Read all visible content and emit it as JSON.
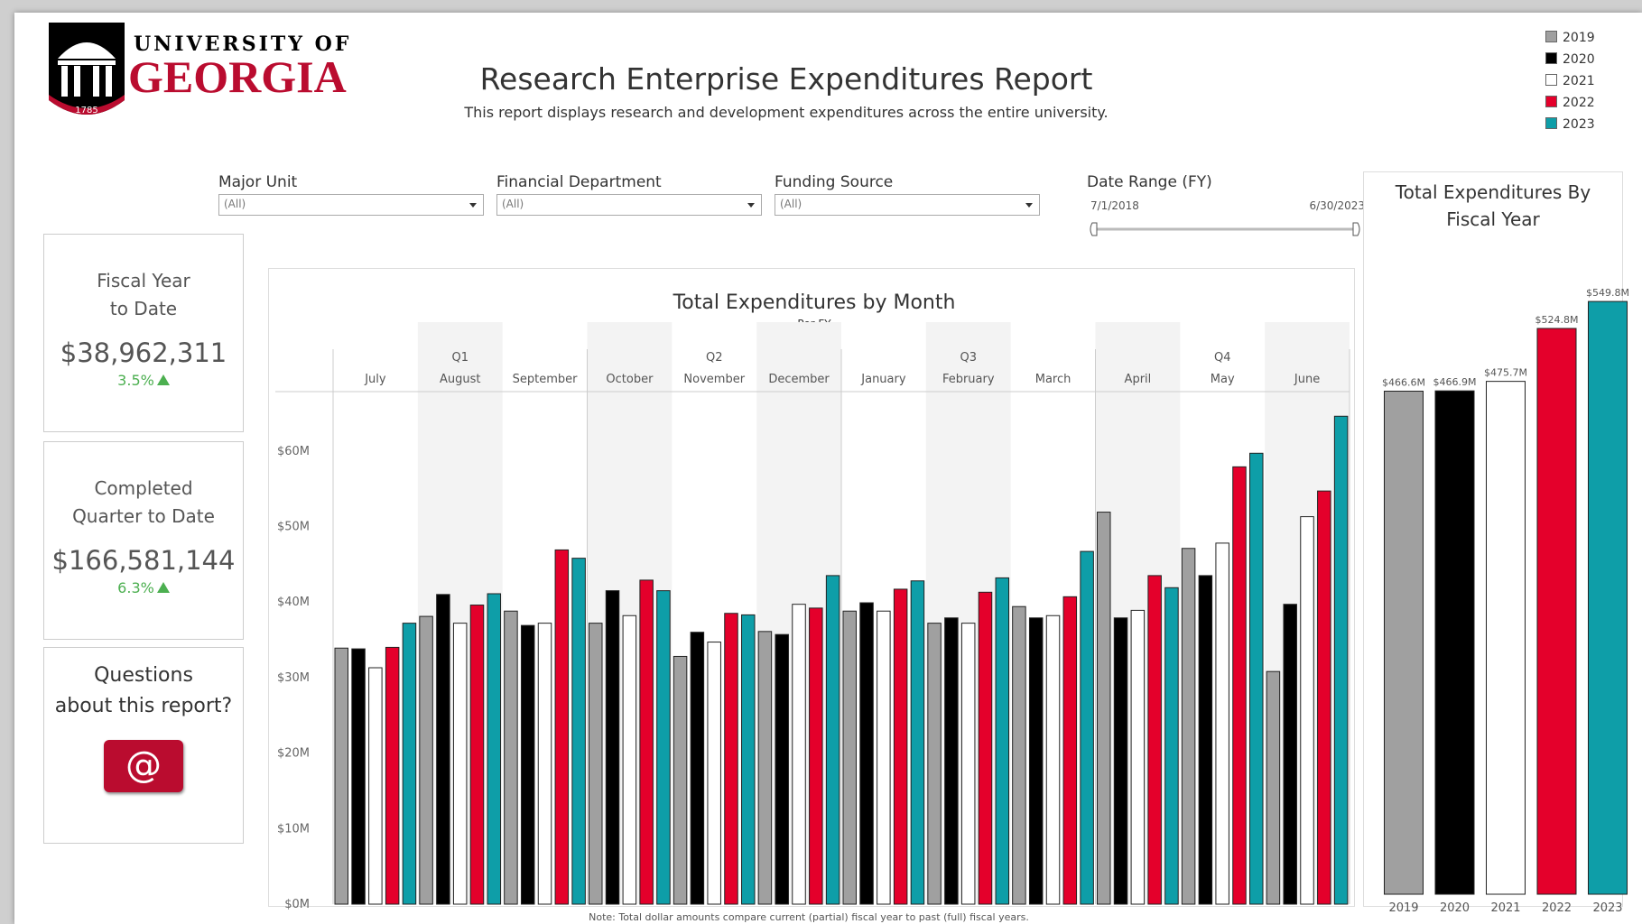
{
  "header": {
    "university_line1": "UNIVERSITY OF",
    "university_line2": "GEORGIA",
    "seal_year": "1785",
    "title": "Research Enterprise Expenditures Report",
    "subtitle": "This report displays research and development expenditures across the entire university."
  },
  "filters": [
    {
      "label": "Major Unit",
      "value": "(All)"
    },
    {
      "label": "Financial Department",
      "value": "(All)"
    },
    {
      "label": "Funding Source",
      "value": "(All)"
    }
  ],
  "date_range": {
    "label": "Date Range (FY)",
    "start": "7/1/2018",
    "end": "6/30/2023"
  },
  "kpis": [
    {
      "title_lines": [
        "Fiscal Year",
        "to Date"
      ],
      "value": "$38,962,311",
      "change": "3.5%"
    },
    {
      "title_lines": [
        "Completed",
        "Quarter to Date"
      ],
      "value": "$166,581,144",
      "change": "6.3%"
    }
  ],
  "contact": {
    "lines": [
      "Questions",
      "about this report?"
    ],
    "icon_text": "@"
  },
  "note": "Note: Total dollar amounts compare current (partial) fiscal year to past (full) fiscal years.",
  "chart_data": [
    {
      "type": "bar",
      "title": "Total Expenditures by Month",
      "subtitle": "Per FY",
      "quarters": [
        "Q1",
        "Q2",
        "Q3",
        "Q4"
      ],
      "categories": [
        "July",
        "August",
        "September",
        "October",
        "November",
        "December",
        "January",
        "February",
        "March",
        "April",
        "May",
        "June"
      ],
      "series": [
        {
          "name": "2019",
          "color": "#a0a0a0",
          "values": [
            33.9,
            38.1,
            38.8,
            37.2,
            32.8,
            36.1,
            38.8,
            37.2,
            39.4,
            51.9,
            47.1,
            30.8
          ]
        },
        {
          "name": "2020",
          "color": "#000000",
          "values": [
            33.8,
            41.0,
            36.9,
            41.5,
            36.0,
            35.7,
            39.9,
            37.9,
            37.9,
            37.9,
            43.5,
            39.7
          ]
        },
        {
          "name": "2021",
          "color": "#ffffff",
          "values": [
            31.3,
            37.2,
            37.2,
            38.2,
            34.7,
            39.7,
            38.8,
            37.2,
            38.2,
            38.9,
            47.8,
            51.3
          ]
        },
        {
          "name": "2022",
          "color": "#e4002b",
          "values": [
            34.0,
            39.6,
            46.9,
            42.9,
            38.5,
            39.2,
            41.7,
            41.3,
            40.7,
            43.5,
            57.9,
            54.7
          ]
        },
        {
          "name": "2023",
          "color": "#0e9ea8",
          "values": [
            37.2,
            41.1,
            45.8,
            41.5,
            38.3,
            43.5,
            42.8,
            43.2,
            46.7,
            41.9,
            59.7,
            64.6
          ]
        }
      ],
      "ylim": [
        0,
        67.5
      ],
      "yticks": [
        {
          "value": 0,
          "label": "$0M"
        },
        {
          "value": 10,
          "label": "$10M"
        },
        {
          "value": 20,
          "label": "$20M"
        },
        {
          "value": 30,
          "label": "$30M"
        },
        {
          "value": 40,
          "label": "$40M"
        },
        {
          "value": 50,
          "label": "$50M"
        },
        {
          "value": 60,
          "label": "$60M"
        }
      ],
      "grid": false
    },
    {
      "type": "bar",
      "title": "Total Expenditures By Fiscal Year",
      "categories": [
        "2019",
        "2020",
        "2021",
        "2022",
        "2023"
      ],
      "colors": [
        "#a0a0a0",
        "#000000",
        "#ffffff",
        "#e4002b",
        "#0e9ea8"
      ],
      "values": [
        466.6,
        466.9,
        475.7,
        524.8,
        549.8
      ],
      "value_labels": [
        "$466.6M",
        "$466.9M",
        "$475.7M",
        "$524.8M",
        "$549.8M"
      ],
      "ylim": [
        0,
        575
      ]
    }
  ]
}
